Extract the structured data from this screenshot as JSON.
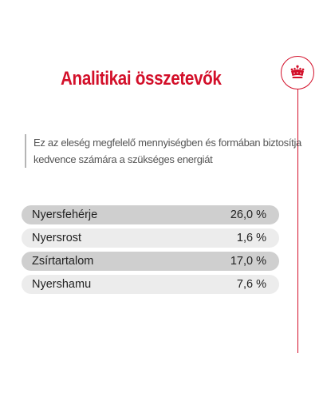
{
  "header": {
    "title": "Analitikai összetevők"
  },
  "logo": {
    "icon": "crown-icon",
    "color": "#d3102a"
  },
  "description": {
    "line1": "Ez az eleség megfelelő mennyiségben és formában biztosítja",
    "line2": "kedvence számára a szükséges energiát"
  },
  "components": [
    {
      "name": "Nyersfehérje",
      "value": "26,0 %"
    },
    {
      "name": "Nyersrost",
      "value": "1,6 %"
    },
    {
      "name": "Zsírtartalom",
      "value": "17,0 %"
    },
    {
      "name": "Nyershamu",
      "value": "7,6 %"
    }
  ]
}
